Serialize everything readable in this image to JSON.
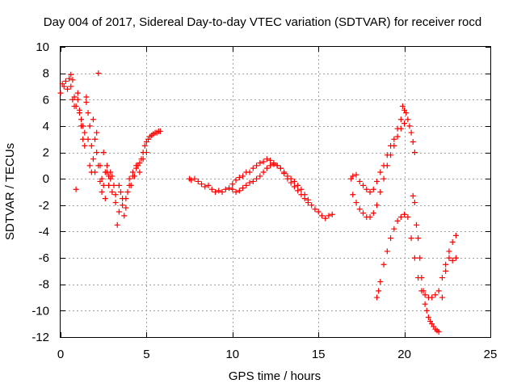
{
  "chart_data": {
    "type": "scatter",
    "title": "Day 004 of 2017, Sidereal Day-to-day VTEC variation (SDTVAR) for receiver rocd",
    "xlabel": "GPS time / hours",
    "ylabel": "SDTVAR / TECUs",
    "xlim": [
      0,
      25
    ],
    "ylim": [
      -12,
      10
    ],
    "xticks": [
      0,
      5,
      10,
      15,
      20,
      25
    ],
    "yticks": [
      -12,
      -10,
      -8,
      -6,
      -4,
      -2,
      0,
      2,
      4,
      6,
      8,
      10
    ],
    "grid": true,
    "legend": "none",
    "marker": "plus",
    "marker_color": "#ff0000",
    "series": [
      {
        "x": [
          0.0,
          0.1,
          0.2,
          0.3,
          0.4,
          0.5,
          0.6,
          0.7,
          0.8,
          0.9,
          1.0,
          1.1,
          1.2,
          1.3,
          1.4,
          1.5,
          1.6,
          1.7,
          1.8,
          1.9,
          2.0,
          2.1,
          2.2,
          2.3,
          2.4,
          2.5,
          2.6,
          2.7,
          2.8,
          2.9,
          3.0,
          3.1,
          3.2,
          3.3,
          3.4,
          3.5,
          3.6,
          3.7,
          3.8,
          3.9,
          4.0,
          4.1,
          4.2,
          4.3,
          4.4,
          4.5,
          4.6,
          4.7,
          4.8,
          4.9,
          5.0,
          5.1,
          5.2,
          5.3,
          5.4,
          5.5,
          5.6,
          5.7,
          5.8
        ],
        "y": [
          6.5,
          7.2,
          7.0,
          7.4,
          6.8,
          7.6,
          7.9,
          7.5,
          6.2,
          5.5,
          6.0,
          5.2,
          4.5,
          4.0,
          3.5,
          6.2,
          5.0,
          4.0,
          2.5,
          1.5,
          0.5,
          3.5,
          8.0,
          1.0,
          -1.0,
          2.0,
          -1.5,
          0.5,
          0.2,
          0.0,
          -1.0,
          -0.5,
          -1.8,
          -3.5,
          -2.5,
          -1.0,
          -2.0,
          -2.8,
          -1.5,
          -1.0,
          0.0,
          -0.5,
          0.5,
          0.2,
          1.0,
          1.0,
          0.5,
          1.5,
          2.0,
          2.5,
          2.8,
          3.0,
          3.2,
          3.3,
          3.4,
          3.5,
          3.5,
          3.6,
          3.6
        ]
      },
      {
        "x": [
          0.6,
          0.7,
          0.8,
          0.9,
          1.0,
          1.1,
          1.2,
          1.3,
          1.4,
          1.5,
          1.6,
          1.7,
          1.8,
          1.9,
          2.0,
          2.1,
          2.2,
          2.3,
          2.4,
          2.5,
          2.6,
          2.7,
          2.8,
          2.9,
          3.0,
          3.2,
          3.4,
          3.6,
          3.8,
          4.0,
          4.2,
          4.4,
          4.6,
          4.8,
          5.0
        ],
        "y": [
          7.0,
          6.0,
          5.5,
          -0.8,
          6.5,
          5.0,
          4.0,
          3.0,
          2.5,
          5.8,
          3.0,
          1.0,
          0.5,
          4.5,
          3.0,
          2.0,
          1.0,
          -0.2,
          0.0,
          -0.5,
          0.5,
          1.0,
          -0.5,
          0.5,
          0.2,
          -1.2,
          -0.5,
          -1.5,
          -2.2,
          -0.5,
          0.2,
          0.8,
          1.2,
          1.5,
          2.0
        ]
      },
      {
        "x": [
          7.5,
          7.6,
          7.8,
          8.0,
          8.2,
          8.4,
          8.6,
          8.8,
          9.0,
          9.2,
          9.4,
          9.6,
          9.8,
          10.0,
          10.2,
          10.4,
          10.6,
          10.8,
          11.0,
          11.2,
          11.4,
          11.6,
          11.8,
          12.0,
          12.2,
          12.4,
          12.6,
          12.8,
          13.0,
          13.2,
          13.4,
          13.6,
          13.8,
          14.0,
          14.2,
          14.4,
          14.6,
          14.8,
          15.0,
          15.2,
          15.4,
          15.6,
          15.8
        ],
        "y": [
          0.0,
          -0.1,
          0.0,
          -0.2,
          -0.4,
          -0.6,
          -0.5,
          -0.8,
          -1.0,
          -0.9,
          -1.0,
          -0.8,
          -0.7,
          -0.4,
          -0.1,
          0.1,
          0.2,
          0.5,
          0.5,
          0.8,
          1.0,
          1.2,
          1.3,
          1.5,
          1.4,
          1.2,
          1.0,
          0.8,
          0.5,
          0.2,
          0.0,
          -0.2,
          -0.5,
          -0.8,
          -1.2,
          -1.6,
          -2.0,
          -2.3,
          -2.5,
          -2.8,
          -3.0,
          -2.8,
          -2.7
        ]
      },
      {
        "x": [
          10.0,
          10.2,
          10.4,
          10.6,
          10.8,
          11.0,
          11.2,
          11.4,
          11.6,
          11.8,
          12.0,
          12.2,
          12.4,
          12.6,
          12.8,
          13.0,
          13.2,
          13.4,
          13.6,
          13.8,
          14.0,
          14.2,
          14.4
        ],
        "y": [
          -0.8,
          -1.0,
          -0.9,
          -0.7,
          -0.5,
          -0.3,
          -0.2,
          0.0,
          0.2,
          0.5,
          0.8,
          1.0,
          1.1,
          1.0,
          0.8,
          0.4,
          0.0,
          -0.3,
          -0.6,
          -0.9,
          -1.2,
          -1.5,
          -1.8
        ]
      },
      {
        "x": [
          16.9,
          17.0,
          17.2,
          17.4,
          17.6,
          17.8,
          18.0,
          18.2,
          18.4,
          18.6,
          18.8,
          19.0,
          19.2,
          19.4,
          19.6,
          19.8,
          19.9,
          20.0,
          20.1,
          20.2,
          20.3,
          20.4,
          20.5,
          20.6
        ],
        "y": [
          0.0,
          0.2,
          0.3,
          -0.2,
          -0.5,
          -0.8,
          -1.0,
          -0.8,
          -0.2,
          0.5,
          1.0,
          1.8,
          2.5,
          3.0,
          3.8,
          4.5,
          5.5,
          5.2,
          5.0,
          4.5,
          4.0,
          3.5,
          2.8,
          2.0
        ]
      },
      {
        "x": [
          17.0,
          17.2,
          17.4,
          17.6,
          17.8,
          18.0,
          18.2,
          18.4,
          18.6,
          18.8,
          19.0,
          19.2,
          19.4,
          19.6,
          19.8,
          20.0
        ],
        "y": [
          -1.2,
          -1.8,
          -2.3,
          -2.6,
          -2.9,
          -2.9,
          -2.6,
          -2.0,
          -1.0,
          0.0,
          1.0,
          1.8,
          2.5,
          3.2,
          3.8,
          4.2
        ]
      },
      {
        "x": [
          18.4,
          18.5,
          18.6,
          18.8,
          19.0,
          19.2,
          19.4,
          19.6,
          19.8,
          20.0,
          20.2,
          20.4,
          20.6,
          20.8,
          21.0,
          21.2,
          21.4,
          21.6,
          21.8,
          22.0,
          22.2,
          22.4,
          22.6,
          22.8,
          23.0
        ],
        "y": [
          -9.0,
          -8.5,
          -7.8,
          -6.5,
          -5.5,
          -4.5,
          -3.8,
          -3.2,
          -2.9,
          -2.7,
          -2.9,
          -4.5,
          -6.0,
          -7.5,
          -8.5,
          -8.8,
          -9.0,
          -9.0,
          -8.8,
          -8.5,
          -7.5,
          -6.5,
          -6.0,
          -6.2,
          -6.0
        ]
      },
      {
        "x": [
          20.5,
          20.6,
          20.7,
          20.8,
          20.9,
          21.0,
          21.1,
          21.2,
          21.3,
          21.4,
          21.5,
          21.6,
          21.7,
          21.8,
          21.9,
          22.0,
          22.2,
          22.4,
          22.6,
          22.8,
          23.0
        ],
        "y": [
          -1.3,
          -1.8,
          -3.5,
          -4.5,
          -6.0,
          -7.5,
          -8.5,
          -9.5,
          -10.0,
          -10.5,
          -10.8,
          -11.0,
          -11.2,
          -11.4,
          -11.5,
          -11.6,
          -9.0,
          -7.0,
          -5.5,
          -4.8,
          -4.3
        ]
      }
    ]
  }
}
